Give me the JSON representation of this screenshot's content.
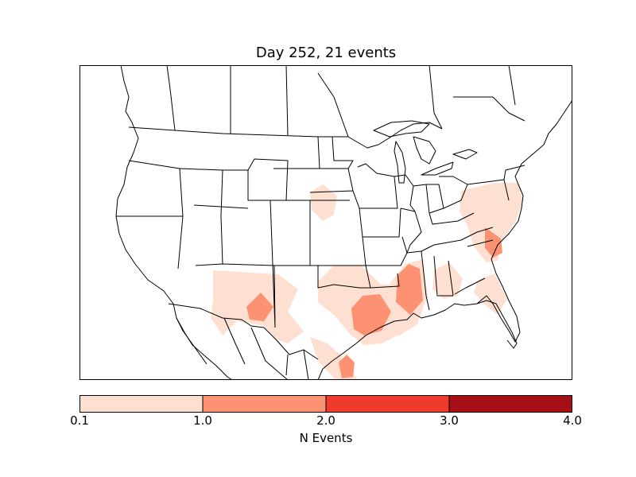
{
  "title": "Day 252, 21 events",
  "colorbar": {
    "label": "N Events",
    "ticks": [
      "0.1",
      "1.0",
      "2.0",
      "3.0",
      "4.0"
    ],
    "colors": [
      "#fee0d2",
      "#fc9272",
      "#ef3b2c",
      "#a50f15"
    ]
  },
  "map": {
    "fill_light": "#fee0d2",
    "fill_mid": "#fc9272"
  }
}
